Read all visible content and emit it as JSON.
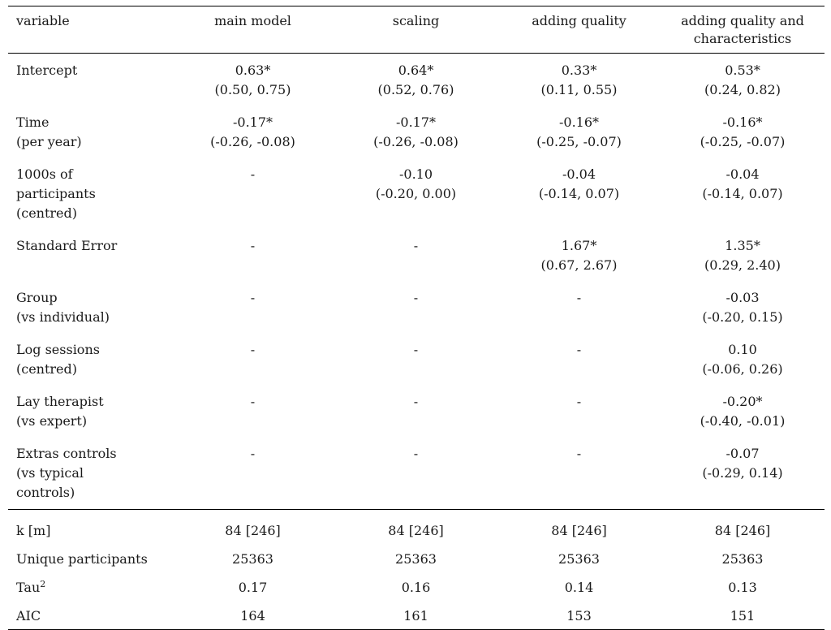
{
  "headers": {
    "variable": "variable",
    "main_model": "main model",
    "scaling": "scaling",
    "adding_quality": "adding quality",
    "adding_quality_chars": "adding quality and characteristics"
  },
  "rows": [
    {
      "label": "Intercept",
      "label2": "",
      "label3": "",
      "cells": [
        {
          "est": "0.63*",
          "ci": "(0.50, 0.75)"
        },
        {
          "est": "0.64*",
          "ci": "(0.52, 0.76)"
        },
        {
          "est": "0.33*",
          "ci": "(0.11, 0.55)"
        },
        {
          "est": "0.53*",
          "ci": "(0.24, 0.82)"
        }
      ]
    },
    {
      "label": "Time",
      "label2": "(per year)",
      "label3": "",
      "cells": [
        {
          "est": "-0.17*",
          "ci": "(-0.26, -0.08)"
        },
        {
          "est": "-0.17*",
          "ci": "(-0.26, -0.08)"
        },
        {
          "est": "-0.16*",
          "ci": "(-0.25, -0.07)"
        },
        {
          "est": "-0.16*",
          "ci": "(-0.25, -0.07)"
        }
      ]
    },
    {
      "label": "1000s of",
      "label2": "participants",
      "label3": "(centred)",
      "cells": [
        {
          "est": "-",
          "ci": ""
        },
        {
          "est": "-0.10",
          "ci": "(-0.20, 0.00)"
        },
        {
          "est": "-0.04",
          "ci": "(-0.14, 0.07)"
        },
        {
          "est": "-0.04",
          "ci": "(-0.14, 0.07)"
        }
      ]
    },
    {
      "label": "Standard Error",
      "label2": "",
      "label3": "",
      "cells": [
        {
          "est": "-",
          "ci": ""
        },
        {
          "est": "-",
          "ci": ""
        },
        {
          "est": "1.67*",
          "ci": "(0.67, 2.67)"
        },
        {
          "est": "1.35*",
          "ci": "(0.29, 2.40)"
        }
      ]
    },
    {
      "label": "Group",
      "label2": "(vs individual)",
      "label3": "",
      "cells": [
        {
          "est": "-",
          "ci": ""
        },
        {
          "est": "-",
          "ci": ""
        },
        {
          "est": "-",
          "ci": ""
        },
        {
          "est": "-0.03",
          "ci": "(-0.20, 0.15)"
        }
      ]
    },
    {
      "label": "Log sessions",
      "label2": "(centred)",
      "label3": "",
      "cells": [
        {
          "est": "-",
          "ci": ""
        },
        {
          "est": "-",
          "ci": ""
        },
        {
          "est": "-",
          "ci": ""
        },
        {
          "est": "0.10",
          "ci": "(-0.06, 0.26)"
        }
      ]
    },
    {
      "label": "Lay therapist",
      "label2": "(vs expert)",
      "label3": "",
      "cells": [
        {
          "est": "-",
          "ci": ""
        },
        {
          "est": "-",
          "ci": ""
        },
        {
          "est": "-",
          "ci": ""
        },
        {
          "est": "-0.20*",
          "ci": "(-0.40, -0.01)"
        }
      ]
    },
    {
      "label": "Extras controls",
      "label2": "(vs typical",
      "label3": "controls)",
      "cells": [
        {
          "est": "-",
          "ci": ""
        },
        {
          "est": "-",
          "ci": ""
        },
        {
          "est": "-",
          "ci": ""
        },
        {
          "est": "-0.07",
          "ci": "(-0.29, 0.14)"
        }
      ]
    }
  ],
  "stats": [
    {
      "label": "k [m]",
      "sup": "",
      "values": [
        "84 [246]",
        "84 [246]",
        "84 [246]",
        "84 [246]"
      ]
    },
    {
      "label": "Unique participants",
      "sup": "",
      "values": [
        "25363",
        "25363",
        "25363",
        "25363"
      ]
    },
    {
      "label": "Tau",
      "sup": "2",
      "values": [
        "0.17",
        "0.16",
        "0.14",
        "0.13"
      ]
    },
    {
      "label": "AIC",
      "sup": "",
      "values": [
        "164",
        "161",
        "153",
        "151"
      ]
    }
  ]
}
